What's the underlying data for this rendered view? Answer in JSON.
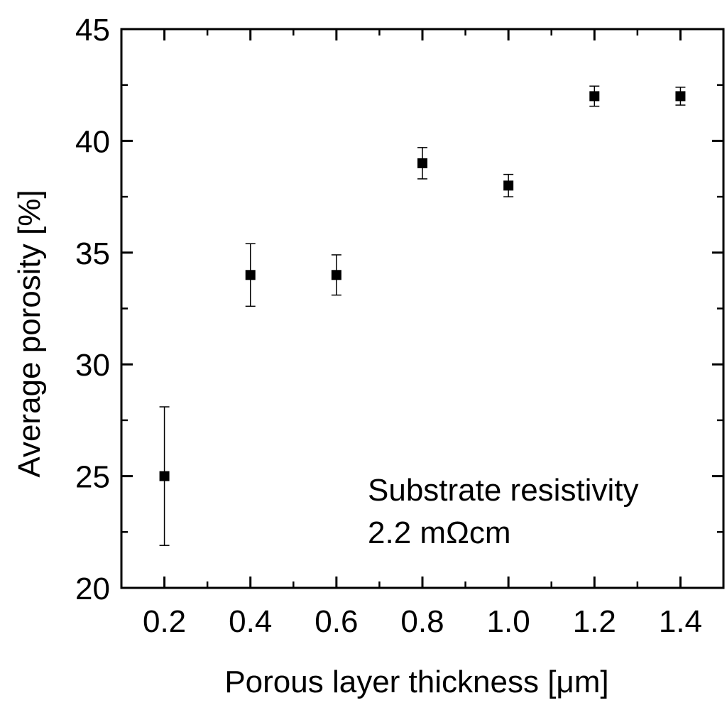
{
  "chart_data": {
    "type": "scatter",
    "title": "",
    "xlabel": "Porous layer thickness [μm]",
    "ylabel": "Average porosity [%]",
    "xlim": [
      0.1,
      1.5
    ],
    "ylim": [
      20,
      45
    ],
    "xticks": [
      0.2,
      0.4,
      0.6,
      0.8,
      1.0,
      1.2,
      1.4
    ],
    "xtick_labels": [
      "0.2",
      "0.4",
      "0.6",
      "0.8",
      "1.0",
      "1.2",
      "1.4"
    ],
    "xminor": [
      0.3,
      0.5,
      0.7,
      0.9,
      1.1,
      1.3
    ],
    "yticks": [
      20,
      25,
      30,
      35,
      40,
      45
    ],
    "ytick_labels": [
      "20",
      "25",
      "30",
      "35",
      "40",
      "45"
    ],
    "yminor": [
      22.5,
      27.5,
      32.5,
      37.5,
      42.5
    ],
    "grid": false,
    "series": [
      {
        "name": "Average porosity",
        "marker": "square",
        "color": "#000000",
        "points": [
          {
            "x": 0.2,
            "y": 25,
            "err_low": 21.9,
            "err_high": 28.1
          },
          {
            "x": 0.4,
            "y": 34,
            "err_low": 32.6,
            "err_high": 35.4
          },
          {
            "x": 0.6,
            "y": 34,
            "err_low": 33.1,
            "err_high": 34.9
          },
          {
            "x": 0.8,
            "y": 39,
            "err_low": 38.3,
            "err_high": 39.7
          },
          {
            "x": 1.0,
            "y": 38,
            "err_low": 37.5,
            "err_high": 38.5
          },
          {
            "x": 1.2,
            "y": 42,
            "err_low": 41.55,
            "err_high": 42.45
          },
          {
            "x": 1.4,
            "y": 42,
            "err_low": 41.6,
            "err_high": 42.4
          }
        ]
      }
    ],
    "annotations": [
      "Substrate resistivity",
      "2.2 mΩcm"
    ]
  }
}
